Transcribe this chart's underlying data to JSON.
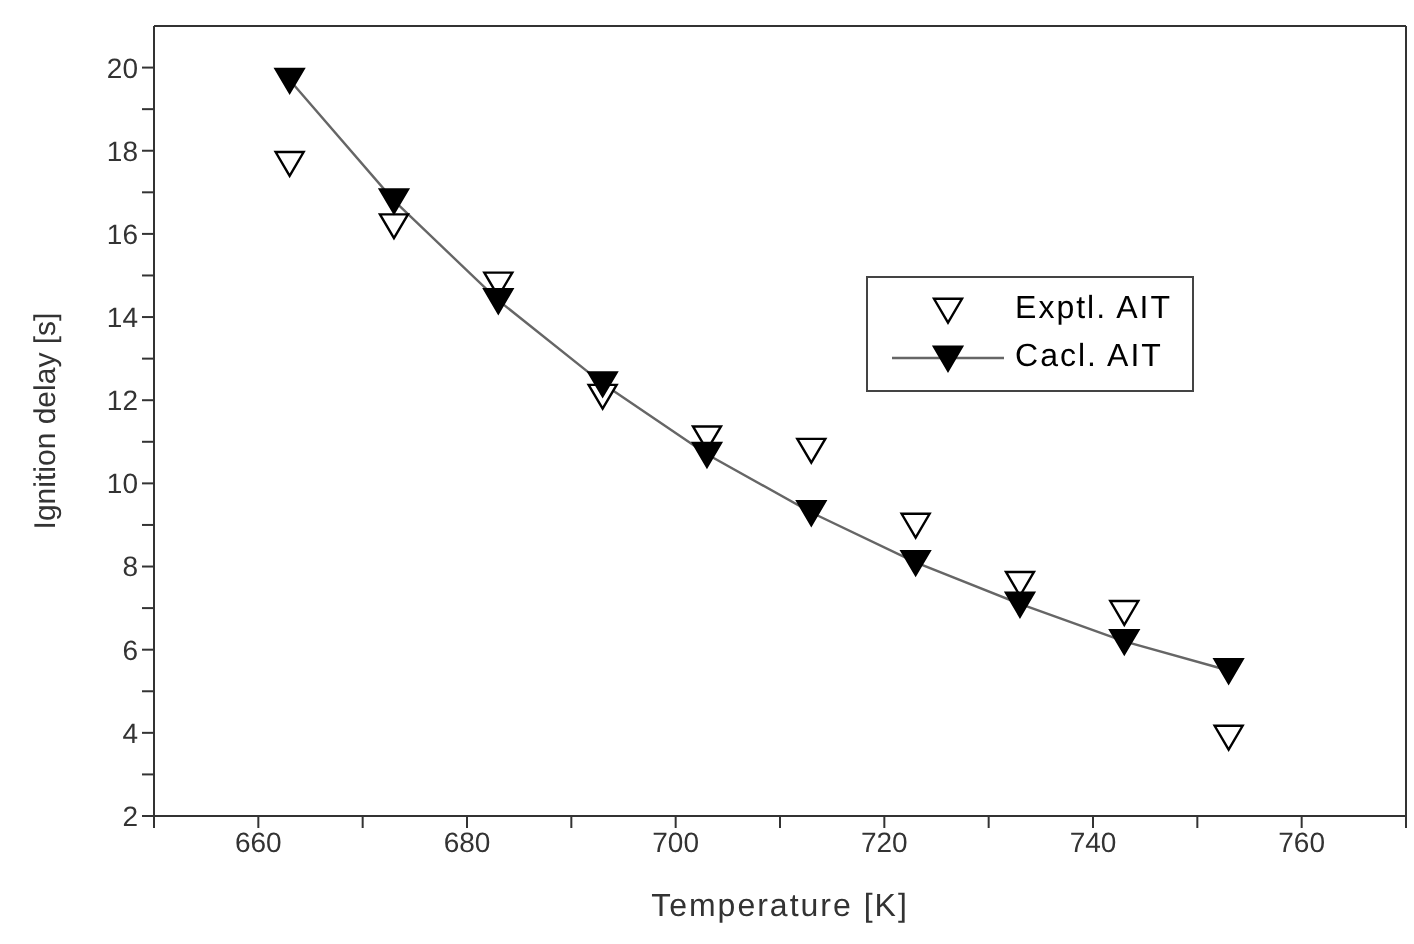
{
  "chart_data": {
    "type": "line",
    "xlabel": "Temperature [K]",
    "ylabel": "Ignition delay [s]",
    "x": [
      663,
      673,
      683,
      693,
      703,
      713,
      723,
      733,
      743,
      753
    ],
    "series": [
      {
        "name": "Exptl. AIT",
        "type": "scatter",
        "color": "#000000",
        "values": [
          17.7,
          16.2,
          14.8,
          12.1,
          11.1,
          10.8,
          9.0,
          7.6,
          6.9,
          3.9
        ]
      },
      {
        "name": "Cacl. AIT",
        "color": "#000000",
        "values": [
          19.7,
          16.8,
          14.4,
          12.4,
          10.7,
          9.3,
          8.1,
          7.1,
          6.2,
          5.5
        ]
      }
    ],
    "xlim": [
      650,
      770
    ],
    "xticks": [
      {
        "value": 650,
        "label": null
      },
      660,
      {
        "value": 670,
        "label": null
      },
      680,
      {
        "value": 690,
        "label": null
      },
      700,
      {
        "value": 710,
        "label": null
      },
      720,
      {
        "value": 730,
        "label": null
      },
      740,
      {
        "value": 750,
        "label": null
      },
      760,
      {
        "value": 770,
        "label": null
      }
    ],
    "ylim": [
      2,
      21
    ],
    "yticks": [
      2,
      {
        "value": 3,
        "label": null
      },
      4,
      {
        "value": 5,
        "label": null
      },
      6,
      {
        "value": 7,
        "label": null
      },
      8,
      {
        "value": 9,
        "label": null
      },
      10,
      {
        "value": 11,
        "label": null
      },
      12,
      {
        "value": 13,
        "label": null
      },
      14,
      {
        "value": 15,
        "label": null
      },
      16,
      {
        "value": 17,
        "label": null
      },
      18,
      {
        "value": 19,
        "label": null
      },
      20
    ],
    "legend": "right",
    "marker": "triangle",
    "line_style": "solid"
  }
}
